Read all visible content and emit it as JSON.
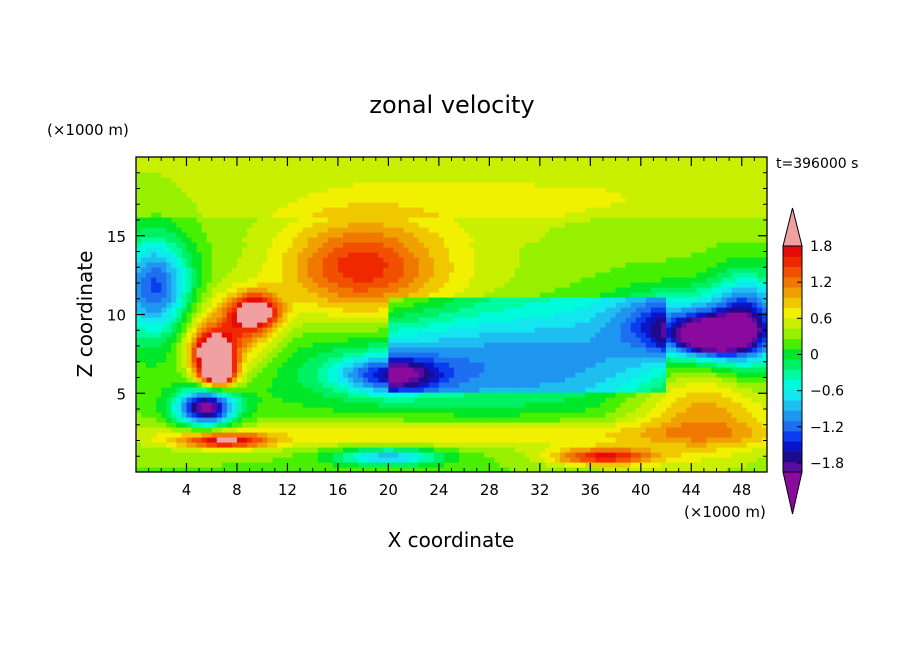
{
  "chart_data": {
    "type": "heatmap",
    "title": "zonal velocity",
    "time_label": "t=396000 s",
    "xlabel": "X coordinate",
    "ylabel": "Z coordinate",
    "x_unit_label": "(×1000 m)",
    "y_unit_label": "(×1000 m)",
    "xlim": [
      0,
      50
    ],
    "ylim": [
      0,
      20
    ],
    "x_ticks": [
      4,
      8,
      12,
      16,
      20,
      24,
      28,
      32,
      36,
      40,
      44,
      48
    ],
    "x_tick_labels": [
      "4",
      "8",
      "12",
      "16",
      "20",
      "24",
      "28",
      "32",
      "36",
      "40",
      "44",
      "48"
    ],
    "y_ticks": [
      5,
      10,
      15
    ],
    "y_tick_labels": [
      "5",
      "10",
      "15"
    ],
    "colorbar": {
      "levels": [
        -2.1,
        -1.95,
        -1.8,
        -1.65,
        -1.5,
        -1.35,
        -1.2,
        -1.05,
        -0.9,
        -0.75,
        -0.6,
        -0.45,
        -0.3,
        -0.15,
        0,
        0.15,
        0.3,
        0.45,
        0.6,
        0.75,
        0.9,
        1.05,
        1.2,
        1.35,
        1.5,
        1.65,
        1.8,
        1.95
      ],
      "colors": [
        "#8a0a9e",
        "#5a0aa0",
        "#1e0a8c",
        "#0a14c8",
        "#0a3cf0",
        "#1e6ef0",
        "#1e96f0",
        "#1ebef0",
        "#14e6f0",
        "#00fadc",
        "#00faa0",
        "#00f064",
        "#00e628",
        "#46f000",
        "#96f000",
        "#c8f000",
        "#f0f000",
        "#f0c800",
        "#f0a000",
        "#f07800",
        "#f05000",
        "#f02800",
        "#e60a0a",
        "#f0a0a0"
      ],
      "tick_values": [
        1.8,
        1.2,
        0.6,
        0,
        -0.6,
        -1.2,
        -1.8
      ],
      "tick_labels": [
        "1.8",
        "1.2",
        "0.6",
        "0",
        "−0.6",
        "−1.2",
        "−1.8"
      ],
      "extend": "both"
    },
    "features": [
      {
        "x": 6.5,
        "z": 6.3,
        "value": 2.0,
        "sx": 1.0,
        "sz": 0.6
      },
      {
        "x": 6.0,
        "z": 7.6,
        "value": 1.5,
        "sx": 1.2,
        "sz": 0.9
      },
      {
        "x": 9.5,
        "z": 10.2,
        "value": 1.4,
        "sx": 1.3,
        "sz": 0.8
      },
      {
        "x": 7.5,
        "z": 8.8,
        "value": 0.9,
        "sx": 2.5,
        "sz": 1.6
      },
      {
        "x": 5.5,
        "z": 4.1,
        "value": -2.0,
        "sx": 1.6,
        "sz": 0.8
      },
      {
        "x": 1.5,
        "z": 11.8,
        "value": -1.4,
        "sx": 2.0,
        "sz": 2.2
      },
      {
        "x": 45.5,
        "z": 8.6,
        "value": -2.0,
        "sx": 2.0,
        "sz": 0.8
      },
      {
        "x": 48.5,
        "z": 9.5,
        "value": -1.5,
        "sx": 2.0,
        "sz": 2.0
      },
      {
        "x": 43.0,
        "z": 9.5,
        "value": -1.0,
        "sx": 3.5,
        "sz": 1.4
      },
      {
        "x": 17.5,
        "z": 13.2,
        "value": 0.75,
        "sx": 4.0,
        "sz": 2.0
      },
      {
        "x": 20.0,
        "z": 12.0,
        "value": 0.45,
        "sx": 7.0,
        "sz": 3.2
      },
      {
        "x": 20.0,
        "z": 6.2,
        "value": -1.2,
        "sx": 2.8,
        "sz": 0.8
      },
      {
        "x": 27.0,
        "z": 7.0,
        "value": -0.7,
        "sx": 12.0,
        "sz": 2.2
      },
      {
        "x": 37.0,
        "z": 1.0,
        "value": 1.2,
        "sx": 3.0,
        "sz": 0.4
      },
      {
        "x": 45.0,
        "z": 4.0,
        "value": 0.75,
        "sx": 4.0,
        "sz": 2.2
      },
      {
        "x": 20.0,
        "z": 1.0,
        "value": -1.0,
        "sx": 3.0,
        "sz": 0.4
      },
      {
        "x": 7.0,
        "z": 2.0,
        "value": 1.2,
        "sx": 2.5,
        "sz": 0.35
      },
      {
        "x": 25.0,
        "z": 2.4,
        "value": 0.5,
        "sx": 20.0,
        "sz": 0.6
      },
      {
        "x": 36.0,
        "z": 17.5,
        "value": 0.15,
        "sx": 14.0,
        "sz": 2.0
      }
    ]
  }
}
